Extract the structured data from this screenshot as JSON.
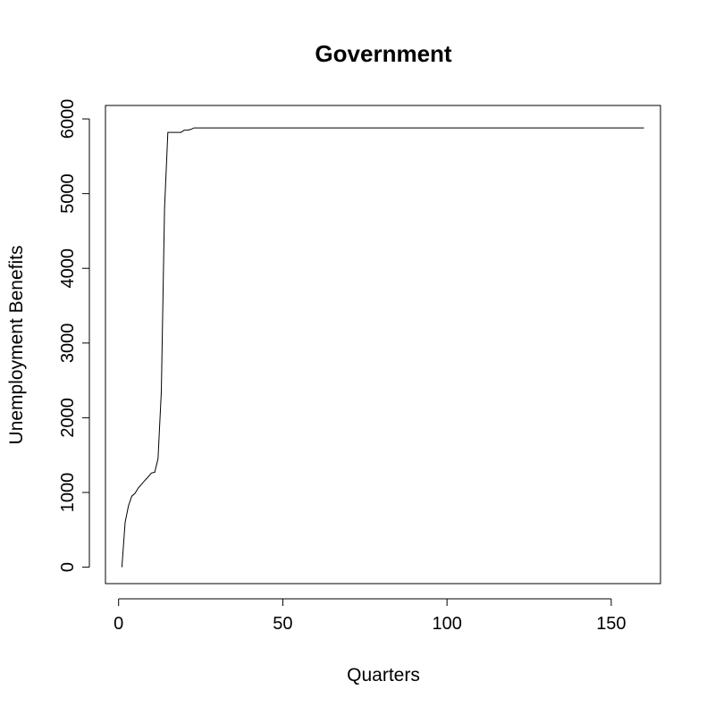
{
  "chart_data": {
    "type": "line",
    "title": "Government",
    "xlabel": "Quarters",
    "ylabel": "Unemployment Benefits",
    "xlim": [
      -4,
      165
    ],
    "ylim": [
      -220,
      6180
    ],
    "xticks": [
      0,
      50,
      100,
      150
    ],
    "yticks": [
      0,
      1000,
      2000,
      3000,
      4000,
      5000,
      6000
    ],
    "grid": false,
    "legend": "none",
    "line_color": "#000000",
    "series": [
      {
        "x": [
          1,
          2,
          3,
          4,
          5,
          6,
          7,
          8,
          9,
          10,
          11,
          12,
          13,
          14,
          15,
          16,
          17,
          18,
          19,
          20,
          21,
          22,
          23,
          24,
          30,
          40,
          50,
          60,
          70,
          80,
          90,
          100,
          110,
          120,
          130,
          140,
          150,
          160
        ],
        "y": [
          0,
          600,
          820,
          950,
          990,
          1060,
          1110,
          1160,
          1210,
          1260,
          1270,
          1450,
          2350,
          4800,
          5820,
          5820,
          5820,
          5820,
          5820,
          5850,
          5850,
          5860,
          5880,
          5880,
          5880,
          5880,
          5880,
          5880,
          5880,
          5880,
          5880,
          5880,
          5880,
          5880,
          5880,
          5880,
          5880,
          5880
        ]
      }
    ]
  }
}
